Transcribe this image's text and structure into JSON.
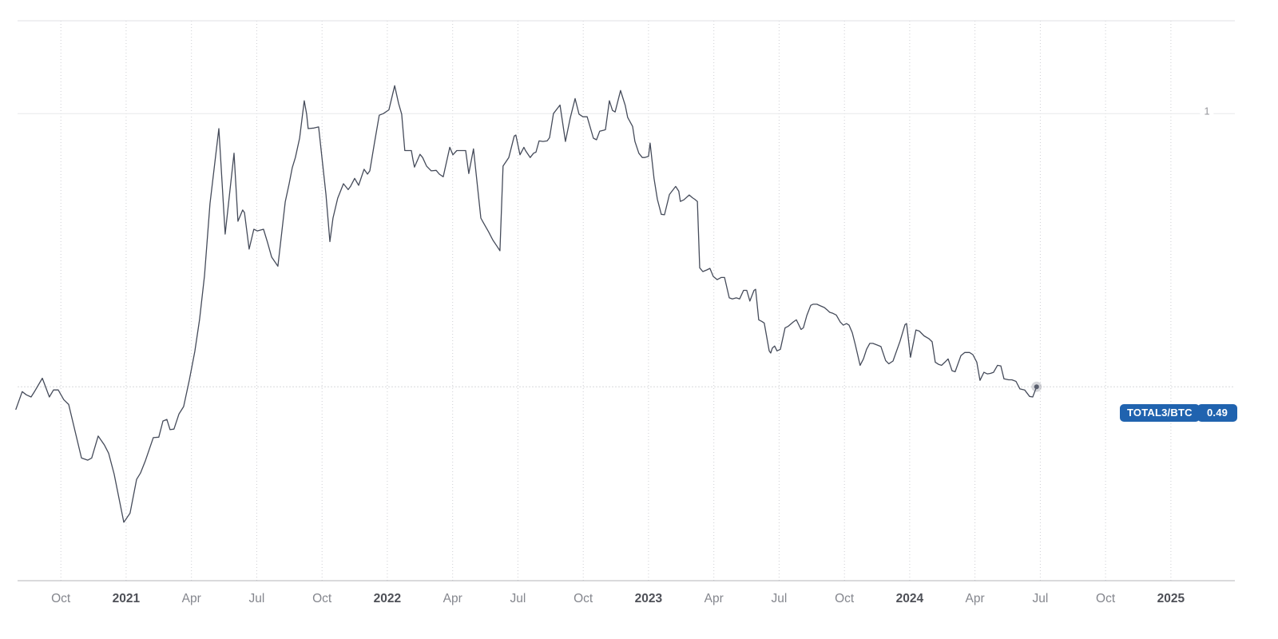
{
  "badges": {
    "symbol": "TOTAL3/BTC",
    "price": "0.49"
  },
  "y_axis": {
    "label": "1"
  },
  "colors": {
    "background": "#ffffff",
    "line": "#454b5a",
    "marker": "#5a5f6e",
    "marker_halo": "rgba(90,96,112,0.25)",
    "grid_solid": "#e7e8ea",
    "grid_dotted": "#cdced3",
    "border_top": "#e0e1e4",
    "axis_line": "#b4b5ba",
    "last_price_line": "#d8d9dc",
    "tick_month": "#84868d",
    "tick_year": "#4e5057",
    "y_tick": "#96979c",
    "badge_bg": "#2063af",
    "badge_text": "#ffffff"
  },
  "chart_data": {
    "type": "line",
    "title": "",
    "xlabel": "",
    "ylabel": "",
    "x_unit": "decimal_year",
    "x_range": [
      2020.517,
      2025.245
    ],
    "y_range": [
      0.128,
      1.212
    ],
    "grid": {
      "horizontal_values": [
        1
      ],
      "vertical_dotted_at_ticks": true
    },
    "legend_position": "none",
    "last_value": 0.49,
    "marker_on_last_point": true,
    "y_ticks": [
      {
        "value": 1,
        "label": "1"
      }
    ],
    "x_ticks": [
      {
        "t": 2020.75,
        "label": "Oct",
        "bold": false
      },
      {
        "t": 2021.0,
        "label": "2021",
        "bold": true
      },
      {
        "t": 2021.25,
        "label": "Apr",
        "bold": false
      },
      {
        "t": 2021.5,
        "label": "Jul",
        "bold": false
      },
      {
        "t": 2021.75,
        "label": "Oct",
        "bold": false
      },
      {
        "t": 2022.0,
        "label": "2022",
        "bold": true
      },
      {
        "t": 2022.25,
        "label": "Apr",
        "bold": false
      },
      {
        "t": 2022.5,
        "label": "Jul",
        "bold": false
      },
      {
        "t": 2022.75,
        "label": "Oct",
        "bold": false
      },
      {
        "t": 2023.0,
        "label": "2023",
        "bold": true
      },
      {
        "t": 2023.25,
        "label": "Apr",
        "bold": false
      },
      {
        "t": 2023.5,
        "label": "Jul",
        "bold": false
      },
      {
        "t": 2023.75,
        "label": "Oct",
        "bold": false
      },
      {
        "t": 2024.0,
        "label": "2024",
        "bold": true
      },
      {
        "t": 2024.25,
        "label": "Apr",
        "bold": false
      },
      {
        "t": 2024.5,
        "label": "Jul",
        "bold": false
      },
      {
        "t": 2024.75,
        "label": "Oct",
        "bold": false
      },
      {
        "t": 2025.0,
        "label": "2025",
        "bold": true
      }
    ],
    "series": [
      {
        "name": "TOTAL3/BTC",
        "points": [
          [
            2020.578,
            0.448
          ],
          [
            2020.602,
            0.481
          ],
          [
            2020.618,
            0.475
          ],
          [
            2020.636,
            0.471
          ],
          [
            2020.648,
            0.48
          ],
          [
            2020.679,
            0.506
          ],
          [
            2020.706,
            0.471
          ],
          [
            2020.722,
            0.484
          ],
          [
            2020.74,
            0.484
          ],
          [
            2020.761,
            0.466
          ],
          [
            2020.78,
            0.457
          ],
          [
            2020.829,
            0.357
          ],
          [
            2020.853,
            0.353
          ],
          [
            2020.868,
            0.357
          ],
          [
            2020.893,
            0.398
          ],
          [
            2020.917,
            0.381
          ],
          [
            2020.933,
            0.366
          ],
          [
            2020.954,
            0.327
          ],
          [
            2020.966,
            0.298
          ],
          [
            2020.991,
            0.237
          ],
          [
            2021.015,
            0.254
          ],
          [
            2021.04,
            0.317
          ],
          [
            2021.055,
            0.329
          ],
          [
            2021.073,
            0.351
          ],
          [
            2021.104,
            0.395
          ],
          [
            2021.125,
            0.396
          ],
          [
            2021.141,
            0.426
          ],
          [
            2021.156,
            0.429
          ],
          [
            2021.168,
            0.41
          ],
          [
            2021.183,
            0.411
          ],
          [
            2021.202,
            0.439
          ],
          [
            2021.22,
            0.453
          ],
          [
            2021.242,
            0.503
          ],
          [
            2021.263,
            0.556
          ],
          [
            2021.281,
            0.615
          ],
          [
            2021.3,
            0.697
          ],
          [
            2021.321,
            0.832
          ],
          [
            2021.355,
            0.972
          ],
          [
            2021.379,
            0.775
          ],
          [
            2021.413,
            0.926
          ],
          [
            2021.428,
            0.799
          ],
          [
            2021.446,
            0.82
          ],
          [
            2021.453,
            0.815
          ],
          [
            2021.471,
            0.747
          ],
          [
            2021.489,
            0.784
          ],
          [
            2021.502,
            0.781
          ],
          [
            2021.526,
            0.784
          ],
          [
            2021.541,
            0.76
          ],
          [
            2021.557,
            0.732
          ],
          [
            2021.581,
            0.715
          ],
          [
            2021.596,
            0.779
          ],
          [
            2021.609,
            0.835
          ],
          [
            2021.624,
            0.869
          ],
          [
            2021.636,
            0.899
          ],
          [
            2021.648,
            0.918
          ],
          [
            2021.664,
            0.954
          ],
          [
            2021.682,
            1.024
          ],
          [
            2021.691,
            0.999
          ],
          [
            2021.697,
            0.972
          ],
          [
            2021.719,
            0.973
          ],
          [
            2021.737,
            0.975
          ],
          [
            2021.765,
            0.849
          ],
          [
            2021.78,
            0.761
          ],
          [
            2021.792,
            0.805
          ],
          [
            2021.81,
            0.842
          ],
          [
            2021.832,
            0.869
          ],
          [
            2021.85,
            0.858
          ],
          [
            2021.859,
            0.864
          ],
          [
            2021.875,
            0.879
          ],
          [
            2021.89,
            0.866
          ],
          [
            2021.911,
            0.896
          ],
          [
            2021.924,
            0.887
          ],
          [
            2021.933,
            0.893
          ],
          [
            2021.951,
            0.946
          ],
          [
            2021.969,
            0.997
          ],
          [
            2021.985,
            1.0
          ],
          [
            2022.006,
            1.007
          ],
          [
            2022.028,
            1.052
          ],
          [
            2022.043,
            1.019
          ],
          [
            2022.055,
            0.999
          ],
          [
            2022.067,
            0.931
          ],
          [
            2022.092,
            0.931
          ],
          [
            2022.098,
            0.914
          ],
          [
            2022.104,
            0.9
          ],
          [
            2022.125,
            0.924
          ],
          [
            2022.135,
            0.918
          ],
          [
            2022.15,
            0.902
          ],
          [
            2022.168,
            0.893
          ],
          [
            2022.187,
            0.894
          ],
          [
            2022.199,
            0.887
          ],
          [
            2022.214,
            0.882
          ],
          [
            2022.239,
            0.937
          ],
          [
            2022.251,
            0.923
          ],
          [
            2022.266,
            0.931
          ],
          [
            2022.284,
            0.931
          ],
          [
            2022.3,
            0.931
          ],
          [
            2022.312,
            0.888
          ],
          [
            2022.33,
            0.934
          ],
          [
            2022.349,
            0.847
          ],
          [
            2022.358,
            0.805
          ],
          [
            2022.367,
            0.797
          ],
          [
            2022.388,
            0.779
          ],
          [
            2022.404,
            0.764
          ],
          [
            2022.419,
            0.753
          ],
          [
            2022.431,
            0.744
          ],
          [
            2022.443,
            0.902
          ],
          [
            2022.465,
            0.918
          ],
          [
            2022.486,
            0.958
          ],
          [
            2022.492,
            0.96
          ],
          [
            2022.508,
            0.923
          ],
          [
            2022.523,
            0.937
          ],
          [
            2022.529,
            0.931
          ],
          [
            2022.547,
            0.918
          ],
          [
            2022.56,
            0.926
          ],
          [
            2022.569,
            0.928
          ],
          [
            2022.581,
            0.949
          ],
          [
            2022.596,
            0.948
          ],
          [
            2022.612,
            0.949
          ],
          [
            2022.621,
            0.955
          ],
          [
            2022.636,
            1.0
          ],
          [
            2022.661,
            1.016
          ],
          [
            2022.682,
            0.948
          ],
          [
            2022.7,
            0.991
          ],
          [
            2022.719,
            1.028
          ],
          [
            2022.734,
            0.999
          ],
          [
            2022.749,
            0.994
          ],
          [
            2022.765,
            0.994
          ],
          [
            2022.789,
            0.954
          ],
          [
            2022.801,
            0.951
          ],
          [
            2022.813,
            0.967
          ],
          [
            2022.829,
            0.969
          ],
          [
            2022.835,
            0.97
          ],
          [
            2022.85,
            1.024
          ],
          [
            2022.862,
            1.006
          ],
          [
            2022.872,
            1.003
          ],
          [
            2022.893,
            1.043
          ],
          [
            2022.911,
            1.015
          ],
          [
            2022.92,
            0.993
          ],
          [
            2022.939,
            0.976
          ],
          [
            2022.948,
            0.948
          ],
          [
            2022.963,
            0.926
          ],
          [
            2022.976,
            0.918
          ],
          [
            2022.985,
            0.918
          ],
          [
            2023.0,
            0.92
          ],
          [
            2023.006,
            0.945
          ],
          [
            2023.021,
            0.879
          ],
          [
            2023.034,
            0.84
          ],
          [
            2023.049,
            0.812
          ],
          [
            2023.061,
            0.811
          ],
          [
            2023.08,
            0.849
          ],
          [
            2023.104,
            0.864
          ],
          [
            2023.116,
            0.855
          ],
          [
            2023.122,
            0.836
          ],
          [
            2023.135,
            0.839
          ],
          [
            2023.156,
            0.848
          ],
          [
            2023.168,
            0.843
          ],
          [
            2023.177,
            0.84
          ],
          [
            2023.187,
            0.836
          ],
          [
            2023.196,
            0.712
          ],
          [
            2023.208,
            0.705
          ],
          [
            2023.223,
            0.708
          ],
          [
            2023.235,
            0.711
          ],
          [
            2023.248,
            0.696
          ],
          [
            2023.263,
            0.69
          ],
          [
            2023.278,
            0.694
          ],
          [
            2023.291,
            0.694
          ],
          [
            2023.309,
            0.656
          ],
          [
            2023.321,
            0.654
          ],
          [
            2023.336,
            0.656
          ],
          [
            2023.349,
            0.654
          ],
          [
            2023.364,
            0.67
          ],
          [
            2023.376,
            0.67
          ],
          [
            2023.388,
            0.65
          ],
          [
            2023.404,
            0.67
          ],
          [
            2023.41,
            0.672
          ],
          [
            2023.422,
            0.615
          ],
          [
            2023.434,
            0.612
          ],
          [
            2023.443,
            0.609
          ],
          [
            2023.462,
            0.557
          ],
          [
            2023.468,
            0.553
          ],
          [
            2023.474,
            0.562
          ],
          [
            2023.483,
            0.566
          ],
          [
            2023.492,
            0.557
          ],
          [
            2023.505,
            0.56
          ],
          [
            2023.523,
            0.6
          ],
          [
            2023.535,
            0.603
          ],
          [
            2023.554,
            0.611
          ],
          [
            2023.566,
            0.615
          ],
          [
            2023.584,
            0.597
          ],
          [
            2023.593,
            0.6
          ],
          [
            2023.606,
            0.623
          ],
          [
            2023.621,
            0.642
          ],
          [
            2023.63,
            0.644
          ],
          [
            2023.645,
            0.644
          ],
          [
            2023.658,
            0.641
          ],
          [
            2023.673,
            0.638
          ],
          [
            2023.685,
            0.633
          ],
          [
            2023.694,
            0.629
          ],
          [
            2023.706,
            0.627
          ],
          [
            2023.719,
            0.624
          ],
          [
            2023.734,
            0.611
          ],
          [
            2023.746,
            0.605
          ],
          [
            2023.758,
            0.608
          ],
          [
            2023.768,
            0.605
          ],
          [
            2023.78,
            0.591
          ],
          [
            2023.792,
            0.568
          ],
          [
            2023.81,
            0.53
          ],
          [
            2023.823,
            0.542
          ],
          [
            2023.835,
            0.56
          ],
          [
            2023.847,
            0.571
          ],
          [
            2023.859,
            0.571
          ],
          [
            2023.875,
            0.568
          ],
          [
            2023.89,
            0.565
          ],
          [
            2023.908,
            0.539
          ],
          [
            2023.92,
            0.533
          ],
          [
            2023.936,
            0.538
          ],
          [
            2023.963,
            0.575
          ],
          [
            2023.982,
            0.606
          ],
          [
            2023.988,
            0.608
          ],
          [
            2024.003,
            0.545
          ],
          [
            2024.024,
            0.596
          ],
          [
            2024.037,
            0.594
          ],
          [
            2024.055,
            0.585
          ],
          [
            2024.073,
            0.58
          ],
          [
            2024.086,
            0.574
          ],
          [
            2024.098,
            0.536
          ],
          [
            2024.11,
            0.532
          ],
          [
            2024.122,
            0.53
          ],
          [
            2024.135,
            0.536
          ],
          [
            2024.147,
            0.542
          ],
          [
            2024.162,
            0.52
          ],
          [
            2024.174,
            0.518
          ],
          [
            2024.196,
            0.548
          ],
          [
            2024.211,
            0.554
          ],
          [
            2024.229,
            0.554
          ],
          [
            2024.242,
            0.55
          ],
          [
            2024.257,
            0.536
          ],
          [
            2024.269,
            0.502
          ],
          [
            2024.284,
            0.517
          ],
          [
            2024.297,
            0.514
          ],
          [
            2024.309,
            0.515
          ],
          [
            2024.321,
            0.517
          ],
          [
            2024.336,
            0.53
          ],
          [
            2024.349,
            0.529
          ],
          [
            2024.361,
            0.505
          ],
          [
            2024.379,
            0.503
          ],
          [
            2024.391,
            0.503
          ],
          [
            2024.407,
            0.5
          ],
          [
            2024.422,
            0.486
          ],
          [
            2024.44,
            0.484
          ],
          [
            2024.459,
            0.472
          ],
          [
            2024.471,
            0.471
          ],
          [
            2024.486,
            0.49
          ]
        ]
      }
    ]
  }
}
